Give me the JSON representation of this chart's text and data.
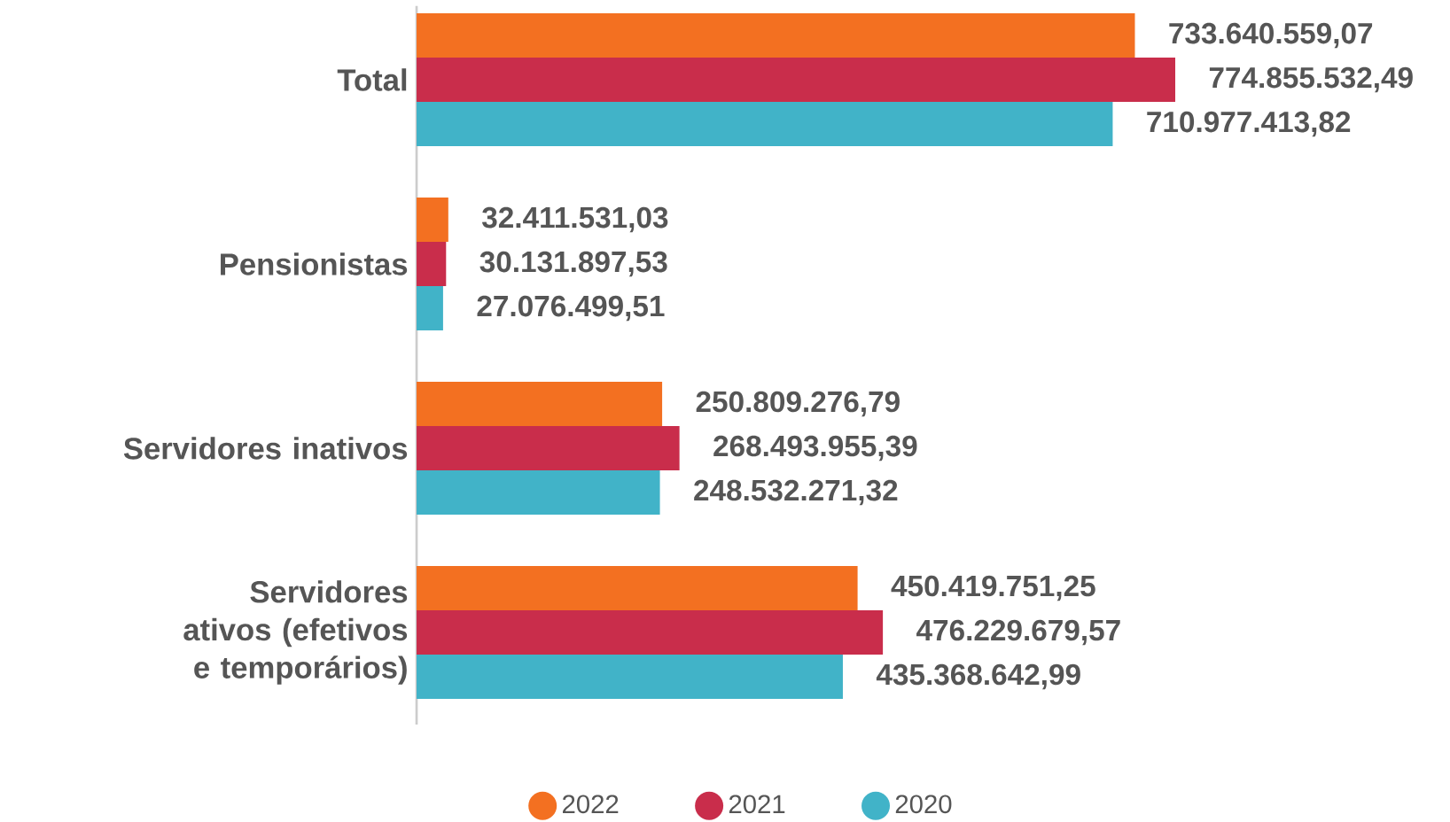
{
  "chart_data": {
    "type": "bar",
    "orientation": "horizontal",
    "legend": "bottom",
    "categories": [
      "Total",
      "Pensionistas",
      "Servidores inativos",
      "Servidores ativos (efetivos e temporários)"
    ],
    "series": [
      {
        "name": "2022",
        "color": "#f37021",
        "values": [
          733640559.07,
          32411531.03,
          250809276.79,
          450419751.25
        ],
        "value_labels": [
          "733.640.559,07",
          "32.411.531,03",
          "250.809.276,79",
          "450.419.751,25"
        ]
      },
      {
        "name": "2021",
        "color": "#c92d4b",
        "values": [
          774855532.49,
          30131897.53,
          268493955.39,
          476229679.57
        ],
        "value_labels": [
          "774.855.532,49",
          "30.131.897,53",
          "268.493.955,39",
          "476.229.679,57"
        ]
      },
      {
        "name": "2020",
        "color": "#41b3c8",
        "values": [
          710977413.82,
          27076499.51,
          248532271.32,
          435368642.99
        ],
        "value_labels": [
          "710.977.413,82",
          "27.076.499,51",
          "248.532.271,32",
          "435.368.642,99"
        ]
      }
    ]
  }
}
